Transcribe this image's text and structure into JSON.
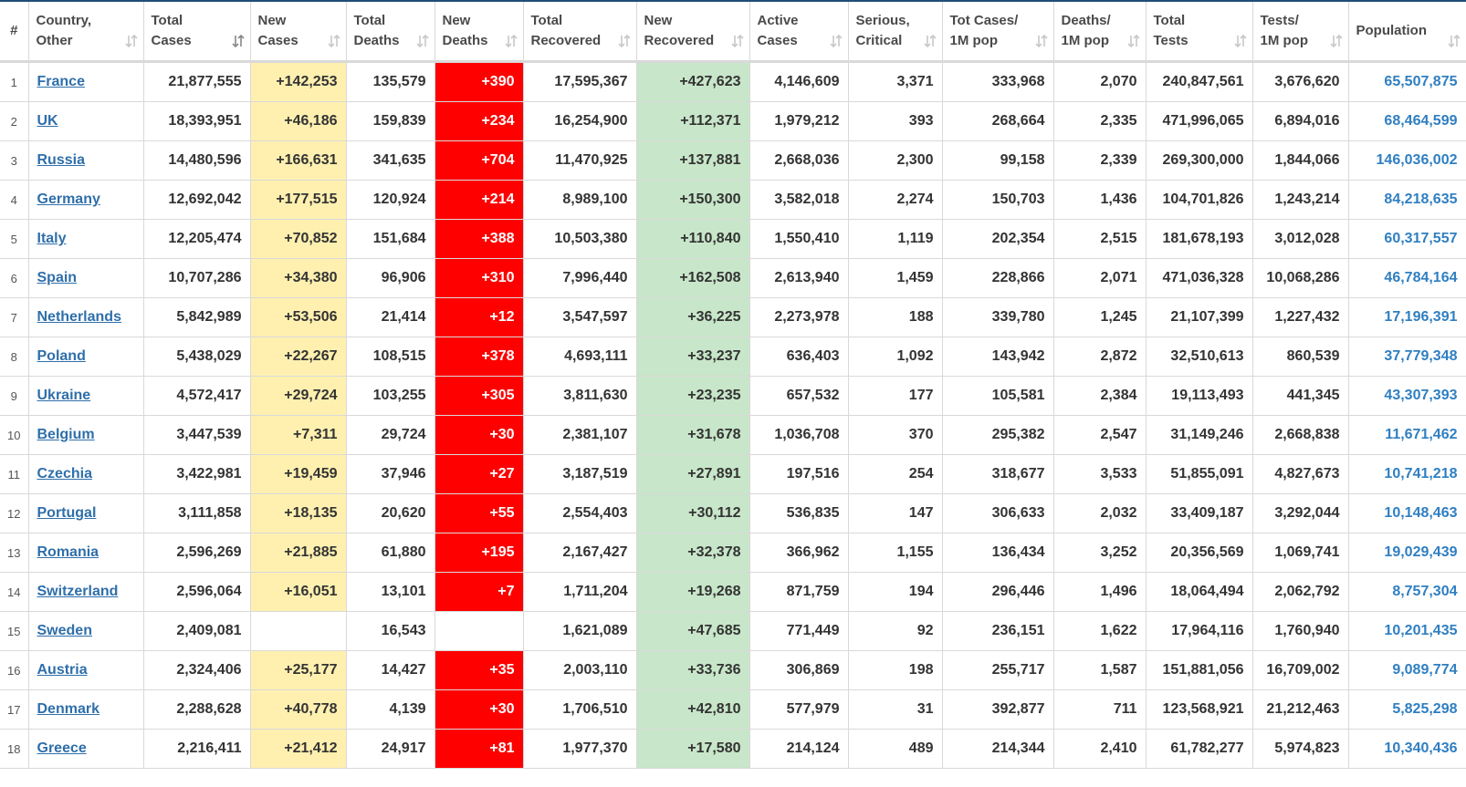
{
  "table": {
    "headers": [
      "#",
      "Country,\nOther",
      "Total\nCases",
      "New\nCases",
      "Total\nDeaths",
      "New\nDeaths",
      "Total\nRecovered",
      "New\nRecovered",
      "Active\nCases",
      "Serious,\nCritical",
      "Tot Cases/\n1M pop",
      "Deaths/\n1M pop",
      "Total\nTests",
      "Tests/\n1M pop",
      "Population"
    ],
    "rows": [
      [
        "1",
        "France",
        "21,877,555",
        "+142,253",
        "135,579",
        "+390",
        "17,595,367",
        "+427,623",
        "4,146,609",
        "3,371",
        "333,968",
        "2,070",
        "240,847,561",
        "3,676,620",
        "65,507,875"
      ],
      [
        "2",
        "UK",
        "18,393,951",
        "+46,186",
        "159,839",
        "+234",
        "16,254,900",
        "+112,371",
        "1,979,212",
        "393",
        "268,664",
        "2,335",
        "471,996,065",
        "6,894,016",
        "68,464,599"
      ],
      [
        "3",
        "Russia",
        "14,480,596",
        "+166,631",
        "341,635",
        "+704",
        "11,470,925",
        "+137,881",
        "2,668,036",
        "2,300",
        "99,158",
        "2,339",
        "269,300,000",
        "1,844,066",
        "146,036,002"
      ],
      [
        "4",
        "Germany",
        "12,692,042",
        "+177,515",
        "120,924",
        "+214",
        "8,989,100",
        "+150,300",
        "3,582,018",
        "2,274",
        "150,703",
        "1,436",
        "104,701,826",
        "1,243,214",
        "84,218,635"
      ],
      [
        "5",
        "Italy",
        "12,205,474",
        "+70,852",
        "151,684",
        "+388",
        "10,503,380",
        "+110,840",
        "1,550,410",
        "1,119",
        "202,354",
        "2,515",
        "181,678,193",
        "3,012,028",
        "60,317,557"
      ],
      [
        "6",
        "Spain",
        "10,707,286",
        "+34,380",
        "96,906",
        "+310",
        "7,996,440",
        "+162,508",
        "2,613,940",
        "1,459",
        "228,866",
        "2,071",
        "471,036,328",
        "10,068,286",
        "46,784,164"
      ],
      [
        "7",
        "Netherlands",
        "5,842,989",
        "+53,506",
        "21,414",
        "+12",
        "3,547,597",
        "+36,225",
        "2,273,978",
        "188",
        "339,780",
        "1,245",
        "21,107,399",
        "1,227,432",
        "17,196,391"
      ],
      [
        "8",
        "Poland",
        "5,438,029",
        "+22,267",
        "108,515",
        "+378",
        "4,693,111",
        "+33,237",
        "636,403",
        "1,092",
        "143,942",
        "2,872",
        "32,510,613",
        "860,539",
        "37,779,348"
      ],
      [
        "9",
        "Ukraine",
        "4,572,417",
        "+29,724",
        "103,255",
        "+305",
        "3,811,630",
        "+23,235",
        "657,532",
        "177",
        "105,581",
        "2,384",
        "19,113,493",
        "441,345",
        "43,307,393"
      ],
      [
        "10",
        "Belgium",
        "3,447,539",
        "+7,311",
        "29,724",
        "+30",
        "2,381,107",
        "+31,678",
        "1,036,708",
        "370",
        "295,382",
        "2,547",
        "31,149,246",
        "2,668,838",
        "11,671,462"
      ],
      [
        "11",
        "Czechia",
        "3,422,981",
        "+19,459",
        "37,946",
        "+27",
        "3,187,519",
        "+27,891",
        "197,516",
        "254",
        "318,677",
        "3,533",
        "51,855,091",
        "4,827,673",
        "10,741,218"
      ],
      [
        "12",
        "Portugal",
        "3,111,858",
        "+18,135",
        "20,620",
        "+55",
        "2,554,403",
        "+30,112",
        "536,835",
        "147",
        "306,633",
        "2,032",
        "33,409,187",
        "3,292,044",
        "10,148,463"
      ],
      [
        "13",
        "Romania",
        "2,596,269",
        "+21,885",
        "61,880",
        "+195",
        "2,167,427",
        "+32,378",
        "366,962",
        "1,155",
        "136,434",
        "3,252",
        "20,356,569",
        "1,069,741",
        "19,029,439"
      ],
      [
        "14",
        "Switzerland",
        "2,596,064",
        "+16,051",
        "13,101",
        "+7",
        "1,711,204",
        "+19,268",
        "871,759",
        "194",
        "296,446",
        "1,496",
        "18,064,494",
        "2,062,792",
        "8,757,304"
      ],
      [
        "15",
        "Sweden",
        "2,409,081",
        null,
        "16,543",
        null,
        "1,621,089",
        "+47,685",
        "771,449",
        "92",
        "236,151",
        "1,622",
        "17,964,116",
        "1,760,940",
        "10,201,435"
      ],
      [
        "16",
        "Austria",
        "2,324,406",
        "+25,177",
        "14,427",
        "+35",
        "2,003,110",
        "+33,736",
        "306,869",
        "198",
        "255,717",
        "1,587",
        "151,881,056",
        "16,709,002",
        "9,089,774"
      ],
      [
        "17",
        "Denmark",
        "2,288,628",
        "+40,778",
        "4,139",
        "+30",
        "1,706,510",
        "+42,810",
        "577,979",
        "31",
        "392,877",
        "711",
        "123,568,921",
        "21,212,463",
        "5,825,298"
      ],
      [
        "18",
        "Greece",
        "2,216,411",
        "+21,412",
        "24,917",
        "+81",
        "1,977,370",
        "+17,580",
        "214,124",
        "489",
        "214,344",
        "2,410",
        "61,782,277",
        "5,974,823",
        "10,340,436"
      ]
    ]
  }
}
